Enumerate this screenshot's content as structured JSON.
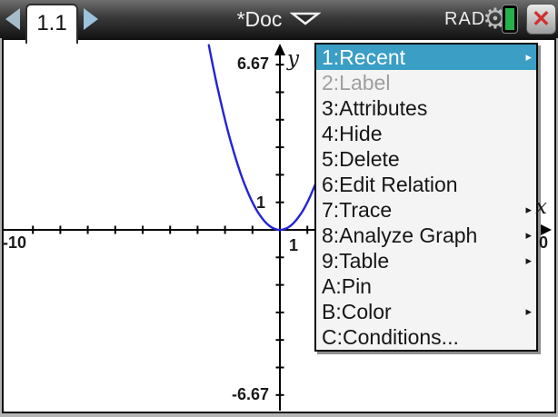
{
  "topbar": {
    "tab_label": "1.1",
    "doc_title": "*Doc",
    "angle_mode": "RAD"
  },
  "icons": {
    "close": "✕",
    "gear": "⚙",
    "submenu_arrow": "▸"
  },
  "graph": {
    "labels": {
      "y_max": "6.67",
      "y_unit": "1",
      "y_min": "-6.67",
      "x_min": "-10",
      "x_unit": "1",
      "x_max_visible": "0",
      "x_axis_name": "x",
      "y_axis_name": "y"
    }
  },
  "chart_data": {
    "type": "line",
    "title": "",
    "function": "f1(x) = x^2",
    "window": {
      "xmin": -10,
      "xmax": 10,
      "ymin": -6.67,
      "ymax": 6.67
    },
    "axis_tick_step": 1,
    "grid": false,
    "series": [
      {
        "name": "f1(x)=x^2",
        "coeff": 1,
        "color": "#2323d6"
      }
    ]
  },
  "context_menu": {
    "highlight_color": "#3a9ec5",
    "items": [
      {
        "label": "1:Recent",
        "submenu": true,
        "state": "selected"
      },
      {
        "label": "2:Label",
        "submenu": false,
        "state": "disabled"
      },
      {
        "label": "3:Attributes",
        "submenu": false,
        "state": "normal"
      },
      {
        "label": "4:Hide",
        "submenu": false,
        "state": "normal"
      },
      {
        "label": "5:Delete",
        "submenu": false,
        "state": "normal"
      },
      {
        "label": "6:Edit Relation",
        "submenu": false,
        "state": "normal"
      },
      {
        "label": "7:Trace",
        "submenu": true,
        "state": "normal"
      },
      {
        "label": "8:Analyze Graph",
        "submenu": true,
        "state": "normal"
      },
      {
        "label": "9:Table",
        "submenu": true,
        "state": "normal"
      },
      {
        "label": "A:Pin",
        "submenu": false,
        "state": "normal"
      },
      {
        "label": "B:Color",
        "submenu": true,
        "state": "normal"
      },
      {
        "label": "C:Conditions...",
        "submenu": false,
        "state": "normal"
      }
    ]
  }
}
